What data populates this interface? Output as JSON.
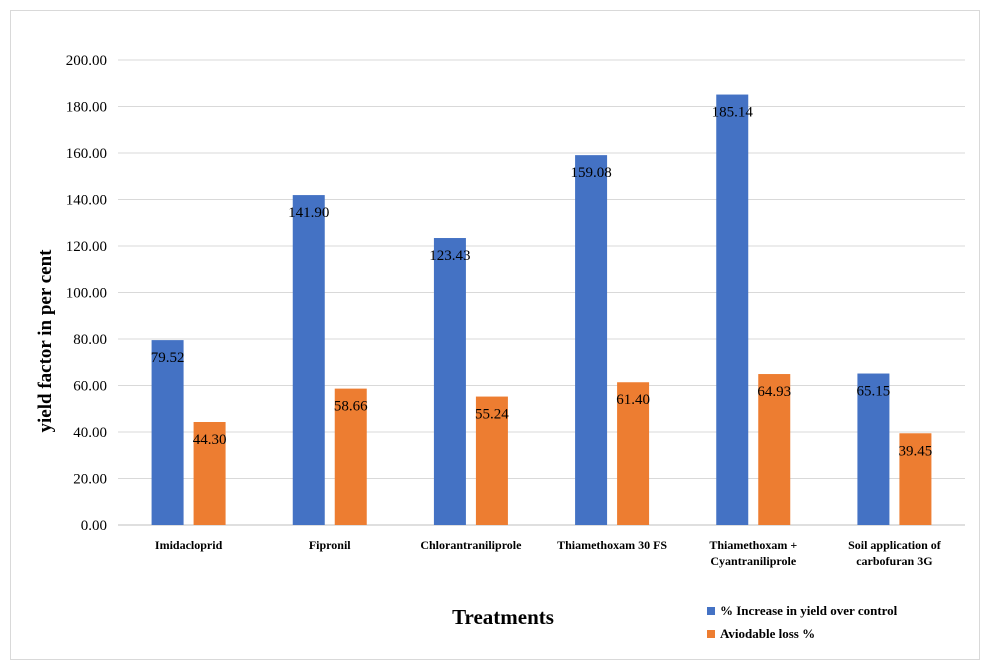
{
  "chart_data": {
    "type": "bar",
    "title": "",
    "xlabel": "Treatments",
    "ylabel": "yield factor in per cent",
    "ylim": [
      0,
      200
    ],
    "y_ticks": [
      "0.00",
      "20.00",
      "40.00",
      "60.00",
      "80.00",
      "100.00",
      "120.00",
      "140.00",
      "160.00",
      "180.00",
      "200.00"
    ],
    "grid": true,
    "legend_position": "bottom-right",
    "categories": [
      [
        "Imidacloprid"
      ],
      [
        "Fipronil"
      ],
      [
        "Chlorantraniliprole"
      ],
      [
        "Thiamethoxam 30 FS"
      ],
      [
        "Thiamethoxam +",
        "Cyantraniliprole"
      ],
      [
        "Soil application of",
        "carbofuran 3G"
      ]
    ],
    "series": [
      {
        "name": "% Increase in yield over control",
        "color": "#4472c4",
        "values": [
          79.52,
          141.9,
          123.43,
          159.08,
          185.14,
          65.15
        ],
        "labels": [
          "79.52",
          "141.90",
          "123.43",
          "159.08",
          "185.14",
          "65.15"
        ]
      },
      {
        "name": "Aviodable loss %",
        "color": "#ed7d31",
        "values": [
          44.3,
          58.66,
          55.24,
          61.4,
          64.93,
          39.45
        ],
        "labels": [
          "44.30",
          "58.66",
          "55.24",
          "61.40",
          "64.93",
          "39.45"
        ]
      }
    ]
  }
}
